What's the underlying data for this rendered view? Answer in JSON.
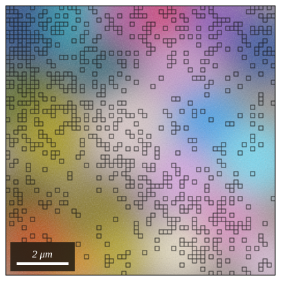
{
  "scale_bar": {
    "label": "2 μm"
  }
}
